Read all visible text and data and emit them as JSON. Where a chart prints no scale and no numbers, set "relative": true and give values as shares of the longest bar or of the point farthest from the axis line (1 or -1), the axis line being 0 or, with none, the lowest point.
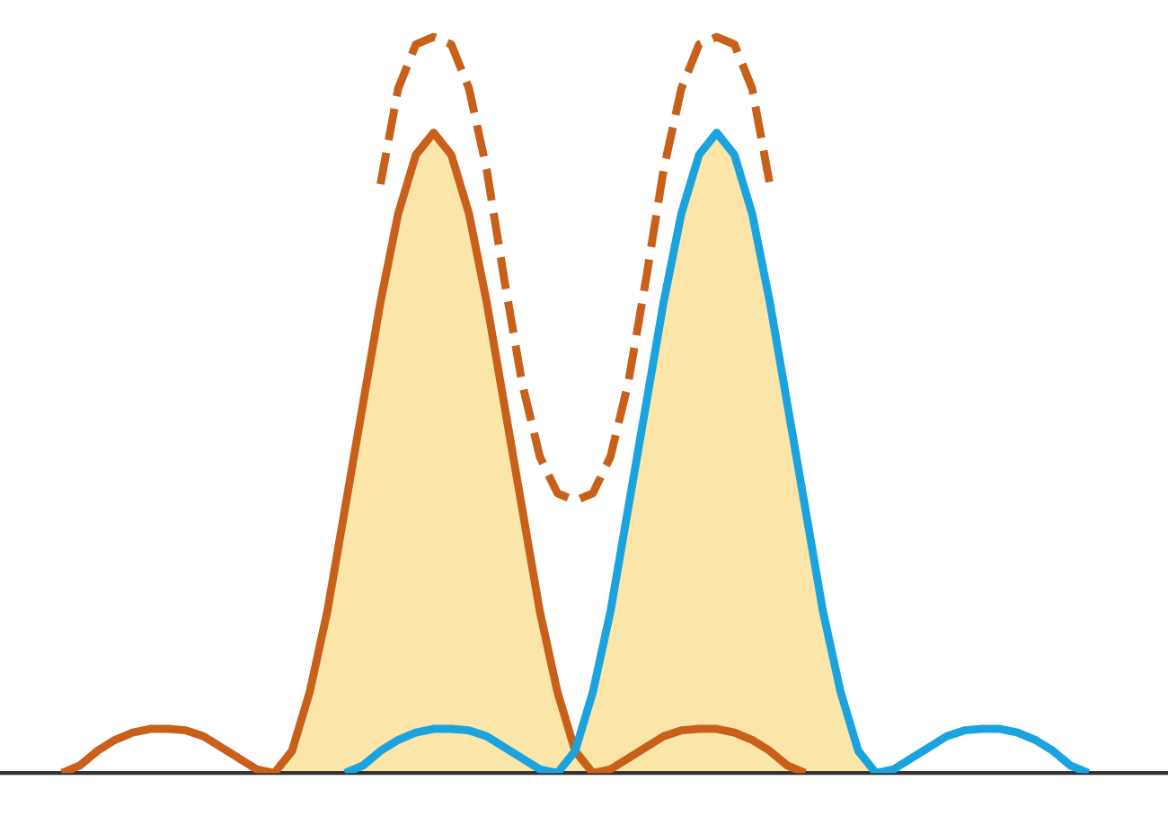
{
  "chart_data": {
    "type": "line",
    "relative": true,
    "marker": "none",
    "categories": [
      null,
      null,
      null,
      null,
      null,
      null,
      null,
      null,
      null,
      null,
      null,
      null,
      null,
      null,
      null,
      null,
      null,
      null,
      null,
      null,
      null,
      null,
      null,
      null,
      null,
      null,
      null,
      null,
      null,
      null,
      null,
      null,
      null,
      null,
      null,
      null,
      null,
      null,
      null,
      null,
      null,
      null,
      null,
      null,
      null,
      null,
      null,
      null,
      null,
      null,
      null,
      null,
      null,
      null,
      null,
      null,
      null,
      null,
      null,
      null,
      null,
      null,
      null,
      null,
      null,
      null
    ],
    "series": [
      {
        "type": "area",
        "color": "#fce5a8",
        "values": [
          null,
          null,
          null,
          null,
          null,
          null,
          null,
          null,
          null,
          null,
          null,
          null,
          null,
          null,
          null,
          0,
          0.03,
          0.11,
          0.22,
          0.36,
          0.5,
          0.64,
          0.76,
          0.84,
          0.87,
          0.84,
          0.76,
          0.64,
          0.5,
          0.36,
          0.22,
          0.11,
          0.03,
          0.11,
          0.22,
          0.36,
          0.5,
          0.64,
          0.76,
          0.84,
          0.87,
          0.84,
          0.76,
          0.64,
          0.5,
          0.36,
          0.22,
          0.11,
          0.03,
          0,
          null,
          null,
          null,
          null,
          null,
          null,
          null,
          null,
          null,
          null,
          null,
          null,
          null,
          null,
          null,
          null
        ]
      },
      {
        "color": "#c8601a",
        "line_style": "solid",
        "values": [
          null,
          null,
          null,
          0,
          0.01,
          0.03,
          0.045,
          0.055,
          0.06,
          0.06,
          0.058,
          0.05,
          0.035,
          0.02,
          0.005,
          0,
          0.03,
          0.11,
          0.22,
          0.36,
          0.5,
          0.64,
          0.76,
          0.84,
          0.87,
          0.84,
          0.76,
          0.64,
          0.5,
          0.36,
          0.22,
          0.11,
          0.03,
          0,
          0.005,
          0.02,
          0.035,
          0.05,
          0.058,
          0.06,
          0.06,
          0.055,
          0.045,
          0.03,
          0.01,
          0,
          null,
          null,
          null,
          null,
          null,
          null,
          null,
          null,
          null,
          null,
          null,
          null,
          null,
          null,
          null,
          null,
          null,
          null,
          null,
          null
        ]
      },
      {
        "color": "#1ba3e0",
        "line_style": "solid",
        "values": [
          null,
          null,
          null,
          null,
          null,
          null,
          null,
          null,
          null,
          null,
          null,
          null,
          null,
          null,
          null,
          null,
          null,
          null,
          null,
          0,
          0.01,
          0.03,
          0.045,
          0.055,
          0.06,
          0.06,
          0.058,
          0.05,
          0.035,
          0.02,
          0.005,
          0,
          0.03,
          0.11,
          0.22,
          0.36,
          0.5,
          0.64,
          0.76,
          0.84,
          0.87,
          0.84,
          0.76,
          0.64,
          0.5,
          0.36,
          0.22,
          0.11,
          0.03,
          0,
          0.005,
          0.02,
          0.035,
          0.05,
          0.058,
          0.06,
          0.06,
          0.055,
          0.045,
          0.03,
          0.01,
          0,
          null,
          null,
          null,
          null
        ]
      },
      {
        "color": "#c8601a",
        "line_style": "dashed",
        "values": [
          null,
          null,
          null,
          null,
          null,
          null,
          null,
          null,
          null,
          null,
          null,
          null,
          null,
          null,
          null,
          null,
          null,
          null,
          null,
          null,
          null,
          0.8,
          0.93,
          0.99,
          1.0,
          0.99,
          0.93,
          0.82,
          0.67,
          0.53,
          0.43,
          0.38,
          0.37,
          0.38,
          0.43,
          0.53,
          0.67,
          0.82,
          0.93,
          0.99,
          1.0,
          0.99,
          0.93,
          0.8,
          null,
          null,
          null,
          null,
          null,
          null,
          null,
          null,
          null,
          null,
          null,
          null,
          null,
          null,
          null,
          null,
          null,
          null,
          null,
          null,
          null,
          null
        ]
      }
    ]
  }
}
